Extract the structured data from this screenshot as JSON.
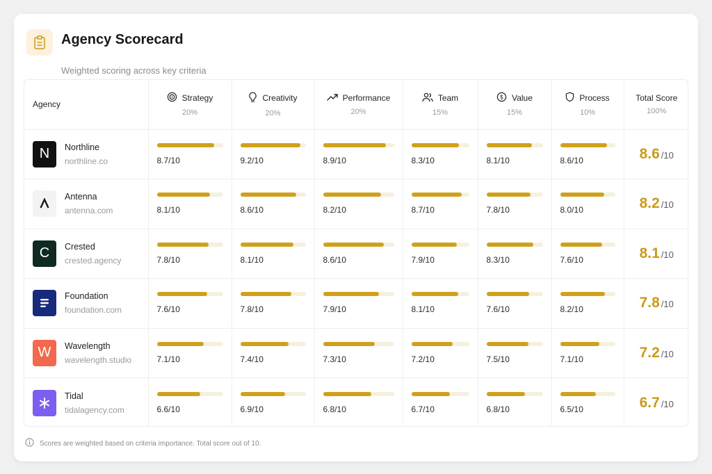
{
  "header": {
    "title": "Agency Scorecard",
    "subtitle": "Weighted scoring across key criteria",
    "icon": "clipboard-icon"
  },
  "columns": {
    "agency": "Agency",
    "criteria": [
      {
        "label": "Strategy",
        "weight": "20%",
        "icon": "target-icon"
      },
      {
        "label": "Creativity",
        "weight": "20%",
        "icon": "lightbulb-icon"
      },
      {
        "label": "Performance",
        "weight": "20%",
        "icon": "trend-up-icon"
      },
      {
        "label": "Team",
        "weight": "15%",
        "icon": "users-icon"
      },
      {
        "label": "Value",
        "weight": "15%",
        "icon": "dollar-icon"
      },
      {
        "label": "Process",
        "weight": "10%",
        "icon": "shield-icon"
      }
    ],
    "total": {
      "label": "Total Score",
      "weight": "100%"
    }
  },
  "accent_color": "#cfa11c",
  "track_color": "#f6f0de",
  "total_color": "#c99a1a",
  "rows": [
    {
      "name": "Northline",
      "domain": "northline.co",
      "logo_letter": "N",
      "logo_color": "#111111",
      "scores": [
        {
          "value": 8.7,
          "label": "8.7/10"
        },
        {
          "value": 9.2,
          "label": "9.2/10"
        },
        {
          "value": 8.9,
          "label": "8.9/10"
        },
        {
          "value": 8.3,
          "label": "8.3/10"
        },
        {
          "value": 8.1,
          "label": "8.1/10"
        },
        {
          "value": 8.6,
          "label": "8.6/10"
        }
      ],
      "total": "8.6",
      "total_suffix": "/10"
    },
    {
      "name": "Antenna",
      "domain": "antenna.com",
      "logo_letter": "A",
      "logo_color": "#f3f3f4",
      "scores": [
        {
          "value": 8.1,
          "label": "8.1/10"
        },
        {
          "value": 8.6,
          "label": "8.6/10"
        },
        {
          "value": 8.2,
          "label": "8.2/10"
        },
        {
          "value": 8.7,
          "label": "8.7/10"
        },
        {
          "value": 7.8,
          "label": "7.8/10"
        },
        {
          "value": 8.0,
          "label": "8.0/10"
        }
      ],
      "total": "8.2",
      "total_suffix": "/10"
    },
    {
      "name": "Crested",
      "domain": "crested.agency",
      "logo_letter": "C",
      "logo_color": "#0e2a22",
      "scores": [
        {
          "value": 7.8,
          "label": "7.8/10"
        },
        {
          "value": 8.1,
          "label": "8.1/10"
        },
        {
          "value": 8.6,
          "label": "8.6/10"
        },
        {
          "value": 7.9,
          "label": "7.9/10"
        },
        {
          "value": 8.3,
          "label": "8.3/10"
        },
        {
          "value": 7.6,
          "label": "7.6/10"
        }
      ],
      "total": "8.1",
      "total_suffix": "/10"
    },
    {
      "name": "Foundation",
      "domain": "foundation.com",
      "logo_letter": "",
      "logo_color": "#172a7c",
      "scores": [
        {
          "value": 7.6,
          "label": "7.6/10"
        },
        {
          "value": 7.8,
          "label": "7.8/10"
        },
        {
          "value": 7.9,
          "label": "7.9/10"
        },
        {
          "value": 8.1,
          "label": "8.1/10"
        },
        {
          "value": 7.6,
          "label": "7.6/10"
        },
        {
          "value": 8.2,
          "label": "8.2/10"
        }
      ],
      "total": "7.8",
      "total_suffix": "/10"
    },
    {
      "name": "Wavelength",
      "domain": "wavelength.studio",
      "logo_letter": "W",
      "logo_color": "#f2694d",
      "scores": [
        {
          "value": 7.1,
          "label": "7.1/10"
        },
        {
          "value": 7.4,
          "label": "7.4/10"
        },
        {
          "value": 7.3,
          "label": "7.3/10"
        },
        {
          "value": 7.2,
          "label": "7.2/10"
        },
        {
          "value": 7.5,
          "label": "7.5/10"
        },
        {
          "value": 7.1,
          "label": "7.1/10"
        }
      ],
      "total": "7.2",
      "total_suffix": "/10"
    },
    {
      "name": "Tidal",
      "domain": "tidalagency.com",
      "logo_letter": "",
      "logo_color": "#7c5ef0",
      "scores": [
        {
          "value": 6.6,
          "label": "6.6/10"
        },
        {
          "value": 6.9,
          "label": "6.9/10"
        },
        {
          "value": 6.8,
          "label": "6.8/10"
        },
        {
          "value": 6.7,
          "label": "6.7/10"
        },
        {
          "value": 6.8,
          "label": "6.8/10"
        },
        {
          "value": 6.5,
          "label": "6.5/10"
        }
      ],
      "total": "6.7",
      "total_suffix": "/10"
    }
  ],
  "footnote": "Scores are weighted based on criteria importance. Total score out of 10."
}
